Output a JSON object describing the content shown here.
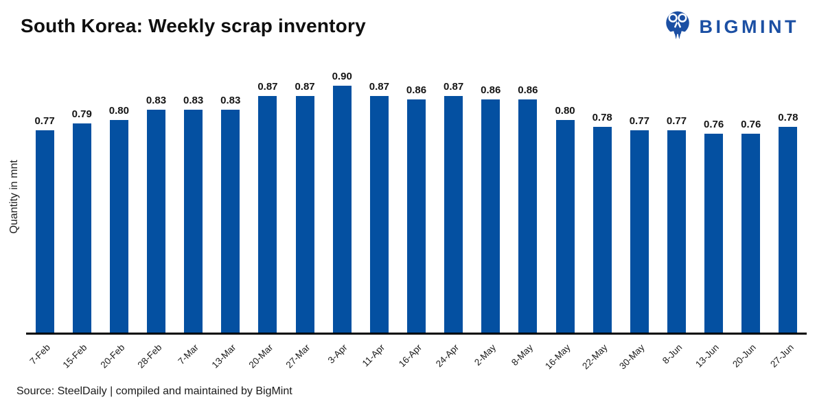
{
  "header": {
    "title": "South Korea: Weekly scrap inventory"
  },
  "logo": {
    "text": "BIGMINT",
    "color": "#1b4fa3"
  },
  "chart_data": {
    "type": "bar",
    "title": "South Korea: Weekly scrap inventory",
    "categories": [
      "7-Feb",
      "15-Feb",
      "20-Feb",
      "28-Feb",
      "7-Mar",
      "13-Mar",
      "20-Mar",
      "27-Mar",
      "3-Apr",
      "11-Apr",
      "16-Apr",
      "24-Apr",
      "2-May",
      "8-May",
      "16-May",
      "22-May",
      "30-May",
      "8-Jun",
      "13-Jun",
      "20-Jun",
      "27-Jun"
    ],
    "values": [
      0.77,
      0.79,
      0.8,
      0.83,
      0.83,
      0.83,
      0.87,
      0.87,
      0.9,
      0.87,
      0.86,
      0.87,
      0.86,
      0.86,
      0.8,
      0.78,
      0.77,
      0.77,
      0.76,
      0.76,
      0.78
    ],
    "xlabel": "",
    "ylabel": "Quantity in mnt",
    "ylim": [
      0.18,
      0.98
    ],
    "grid": false,
    "legend": false,
    "value_labels": true,
    "bar_color": "#0450a1",
    "axis_line_color": "#000000"
  },
  "footer": {
    "source": "Source: SteelDaily | compiled and maintained by BigMint"
  }
}
